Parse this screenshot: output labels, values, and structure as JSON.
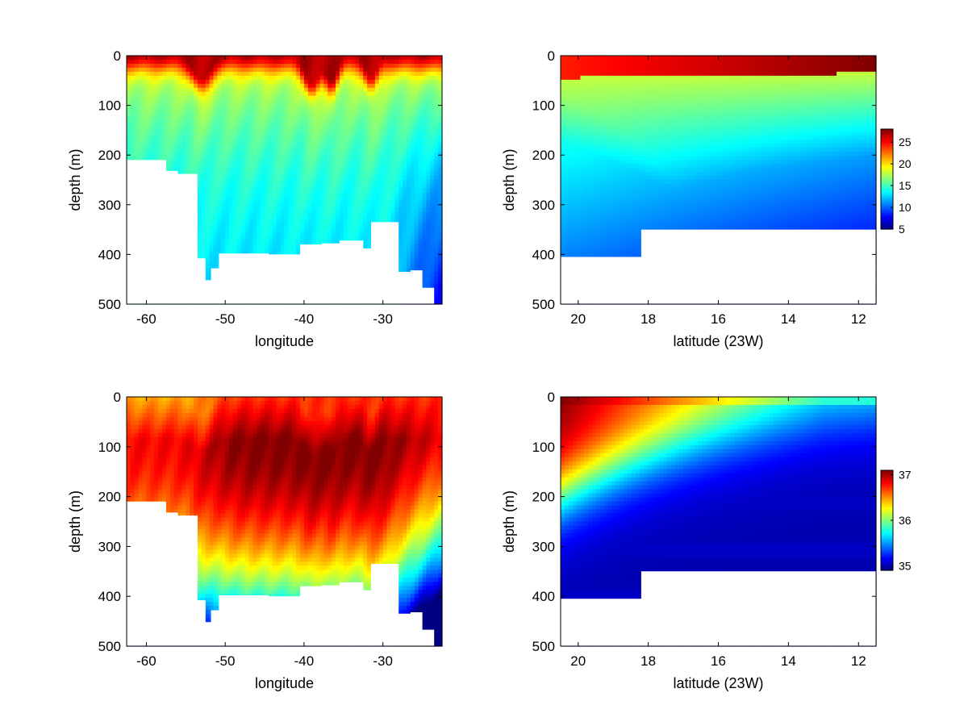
{
  "chart_data": [
    {
      "type": "heatmap",
      "panel": "top-left",
      "xlabel": "longitude",
      "ylabel": "depth (m)",
      "xlim": [
        -62.5,
        -22.5
      ],
      "ylim": [
        0,
        500
      ],
      "y_reversed": true,
      "xticks": [
        -60,
        -50,
        -40,
        -30
      ],
      "xtick_labels": [
        "-60",
        "-50",
        "-40",
        "-30"
      ],
      "yticks": [
        0,
        100,
        200,
        300,
        400,
        500
      ],
      "ytick_labels": [
        "0",
        "100",
        "200",
        "300",
        "400",
        "500"
      ],
      "colorbar": null,
      "value_range": [
        5,
        28
      ],
      "field": {
        "surface": 27.5,
        "mixed_depth": 30,
        "deep": 12,
        "thermo_scale": 230,
        "bumps": [
          {
            "x": -53,
            "amp": 55,
            "width": 1.5
          },
          {
            "x": -39,
            "amp": 70,
            "width": 1.2
          },
          {
            "x": -36.5,
            "amp": 60,
            "width": 1.0
          },
          {
            "x": -31.5,
            "amp": 50,
            "width": 1.0
          }
        ],
        "east_cooling": {
          "x_start": -30,
          "rate": 1.2
        }
      },
      "bathymetry": [
        [
          -62.5,
          210
        ],
        [
          -57.5,
          210
        ],
        [
          -57.5,
          232
        ],
        [
          -56,
          232
        ],
        [
          -56,
          238
        ],
        [
          -53.5,
          238
        ],
        [
          -53.5,
          408
        ],
        [
          -52.5,
          408
        ],
        [
          -52.5,
          452
        ],
        [
          -51.8,
          452
        ],
        [
          -51.8,
          428
        ],
        [
          -50.8,
          428
        ],
        [
          -50.8,
          398
        ],
        [
          -44.5,
          398
        ],
        [
          -44.5,
          400
        ],
        [
          -40.5,
          400
        ],
        [
          -40.5,
          380
        ],
        [
          -37.8,
          380
        ],
        [
          -37.8,
          378
        ],
        [
          -35.5,
          378
        ],
        [
          -35.5,
          372
        ],
        [
          -32.5,
          372
        ],
        [
          -32.5,
          388
        ],
        [
          -31.5,
          388
        ],
        [
          -31.5,
          335
        ],
        [
          -28,
          335
        ],
        [
          -28,
          435
        ],
        [
          -26.5,
          435
        ],
        [
          -26.5,
          432
        ],
        [
          -25,
          432
        ],
        [
          -25,
          467
        ],
        [
          -23.5,
          467
        ],
        [
          -23.5,
          500
        ],
        [
          -62.5,
          500
        ]
      ]
    },
    {
      "type": "heatmap",
      "panel": "top-right",
      "xlabel": "latitude (23W)",
      "ylabel": "depth (m)",
      "xlim": [
        20.5,
        11.5
      ],
      "ylim": [
        0,
        500
      ],
      "y_reversed": true,
      "xticks": [
        20,
        18,
        16,
        14,
        12
      ],
      "xtick_labels": [
        "20",
        "18",
        "16",
        "14",
        "12"
      ],
      "yticks": [
        0,
        100,
        200,
        300,
        400,
        500
      ],
      "ytick_labels": [
        "0",
        "100",
        "200",
        "300",
        "400",
        "500"
      ],
      "colorbar": {
        "ticks": [
          5,
          10,
          15,
          20,
          25
        ],
        "tick_labels": [
          "5",
          "10",
          "15",
          "20",
          "25"
        ],
        "range": [
          5,
          28
        ]
      },
      "value_range": [
        5,
        28
      ],
      "field": {
        "surface_north": 24.5,
        "surface_south": 28,
        "mixed_depth": 35,
        "deep": 10
      },
      "bathymetry": [
        [
          20.5,
          405
        ],
        [
          18.2,
          405
        ],
        [
          18.2,
          350
        ],
        [
          11.5,
          350
        ],
        [
          11.5,
          500
        ],
        [
          20.5,
          500
        ]
      ]
    },
    {
      "type": "heatmap",
      "panel": "bottom-left",
      "xlabel": "longitude",
      "ylabel": "depth (m)",
      "xlim": [
        -62.5,
        -22.5
      ],
      "ylim": [
        0,
        500
      ],
      "y_reversed": true,
      "xticks": [
        -60,
        -50,
        -40,
        -30
      ],
      "xtick_labels": [
        "-60",
        "-50",
        "-40",
        "-30"
      ],
      "yticks": [
        0,
        100,
        200,
        300,
        400,
        500
      ],
      "ytick_labels": [
        "0",
        "100",
        "200",
        "300",
        "400",
        "500"
      ],
      "colorbar": null,
      "value_range": [
        35,
        37
      ],
      "field": {
        "west_surface": 36.5,
        "core_max": 37.0,
        "core_depth": 85,
        "deep": 35.5,
        "bumps": [
          {
            "x": -53,
            "amp": 40,
            "width": 1.5
          },
          {
            "x": -39,
            "amp": 55,
            "width": 1.2
          },
          {
            "x": -36.5,
            "amp": 45,
            "width": 1.0
          },
          {
            "x": -31.5,
            "amp": 40,
            "width": 1.0
          }
        ]
      },
      "bathymetry": [
        [
          -62.5,
          210
        ],
        [
          -57.5,
          210
        ],
        [
          -57.5,
          232
        ],
        [
          -56,
          232
        ],
        [
          -56,
          238
        ],
        [
          -53.5,
          238
        ],
        [
          -53.5,
          408
        ],
        [
          -52.5,
          408
        ],
        [
          -52.5,
          452
        ],
        [
          -51.8,
          452
        ],
        [
          -51.8,
          428
        ],
        [
          -50.8,
          428
        ],
        [
          -50.8,
          398
        ],
        [
          -44.5,
          398
        ],
        [
          -44.5,
          400
        ],
        [
          -40.5,
          400
        ],
        [
          -40.5,
          380
        ],
        [
          -37.8,
          380
        ],
        [
          -37.8,
          378
        ],
        [
          -35.5,
          378
        ],
        [
          -35.5,
          372
        ],
        [
          -32.5,
          372
        ],
        [
          -32.5,
          388
        ],
        [
          -31.5,
          388
        ],
        [
          -31.5,
          335
        ],
        [
          -28,
          335
        ],
        [
          -28,
          435
        ],
        [
          -26.5,
          435
        ],
        [
          -26.5,
          432
        ],
        [
          -25,
          432
        ],
        [
          -25,
          467
        ],
        [
          -23.5,
          467
        ],
        [
          -23.5,
          500
        ],
        [
          -62.5,
          500
        ]
      ]
    },
    {
      "type": "heatmap",
      "panel": "bottom-right",
      "xlabel": "latitude (23W)",
      "ylabel": "depth (m)",
      "xlim": [
        20.5,
        11.5
      ],
      "ylim": [
        0,
        500
      ],
      "y_reversed": true,
      "xticks": [
        20,
        18,
        16,
        14,
        12
      ],
      "xtick_labels": [
        "20",
        "18",
        "16",
        "14",
        "12"
      ],
      "yticks": [
        0,
        100,
        200,
        300,
        400,
        500
      ],
      "ytick_labels": [
        "0",
        "100",
        "200",
        "300",
        "400",
        "500"
      ],
      "colorbar": {
        "ticks": [
          35,
          36,
          37
        ],
        "tick_labels": [
          "35",
          "36",
          "37"
        ],
        "range": [
          34.9,
          37.1
        ]
      },
      "value_range": [
        34.9,
        37.1
      ],
      "field": {
        "north_core": 37.1,
        "south_surface": 35.9,
        "deep": 35.0
      },
      "bathymetry": [
        [
          20.5,
          405
        ],
        [
          18.2,
          405
        ],
        [
          18.2,
          350
        ],
        [
          11.5,
          350
        ],
        [
          11.5,
          500
        ],
        [
          20.5,
          500
        ]
      ]
    }
  ]
}
